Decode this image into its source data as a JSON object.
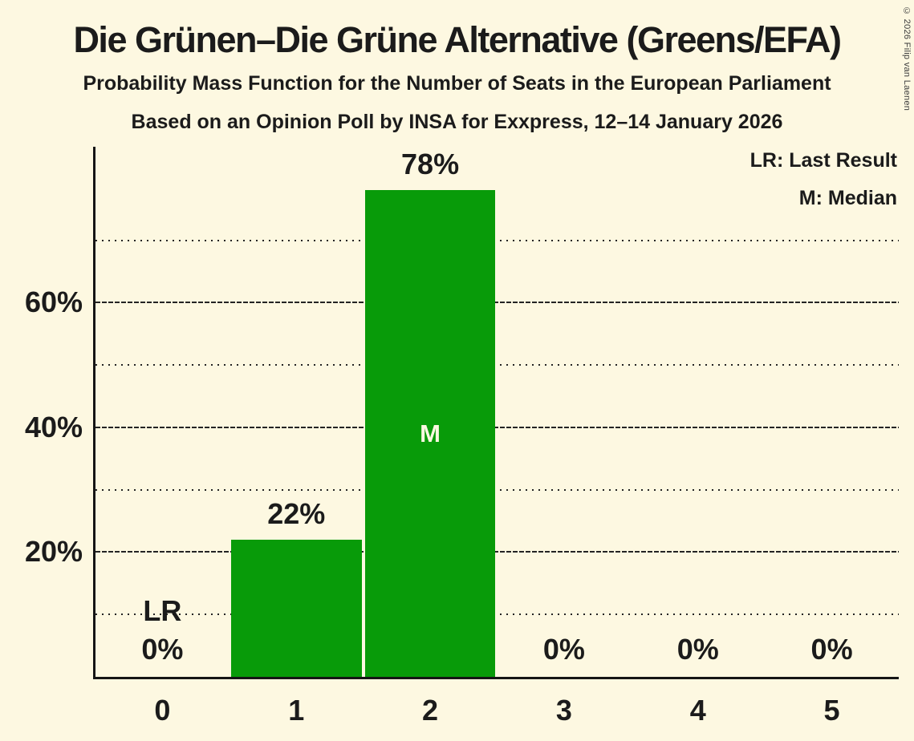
{
  "header": {
    "title": "Die Grünen–Die Grüne Alternative (Greens/EFA)",
    "subtitle1": "Probability Mass Function for the Number of Seats in the European Parliament",
    "subtitle2": "Based on an Opinion Poll by INSA for Exxpress, 12–14 January 2026"
  },
  "legend": {
    "lr_label": "LR: Last Result",
    "m_label": "M: Median"
  },
  "copyright": "© 2026 Filip van Laenen",
  "chart_data": {
    "type": "bar",
    "title": "Die Grünen–Die Grüne Alternative (Greens/EFA)",
    "subtitle": "Probability Mass Function for the Number of Seats in the European Parliament",
    "poll_note": "Based on an Opinion Poll by INSA for Exxpress, 12–14 January 2026",
    "categories": [
      "0",
      "1",
      "2",
      "3",
      "4",
      "5"
    ],
    "values": [
      0,
      22,
      78,
      0,
      0,
      0
    ],
    "bar_labels": [
      "0%",
      "22%",
      "78%",
      "0%",
      "0%",
      "0%"
    ],
    "xlabel": "",
    "ylabel": "",
    "ylim": [
      0,
      85
    ],
    "yticks": [
      {
        "value": 20,
        "label": "20%"
      },
      {
        "value": 40,
        "label": "40%"
      },
      {
        "value": 60,
        "label": "60%"
      }
    ],
    "major_gridlines": [
      20,
      40,
      60
    ],
    "minor_gridlines": [
      10,
      30,
      50,
      70
    ],
    "grid": "horizontal",
    "legend_position": "top-right",
    "legend_entries": [
      "LR: Last Result",
      "M: Median"
    ],
    "annotations": [
      {
        "seat": "0",
        "label": "LR",
        "meaning": "Last Result"
      },
      {
        "seat": "2",
        "label": "M",
        "meaning": "Median"
      }
    ],
    "colors": {
      "bar": "#089B09",
      "background": "#FDF8E1",
      "text": "#1B1B1B",
      "median_label": "#FDF8E1"
    }
  }
}
